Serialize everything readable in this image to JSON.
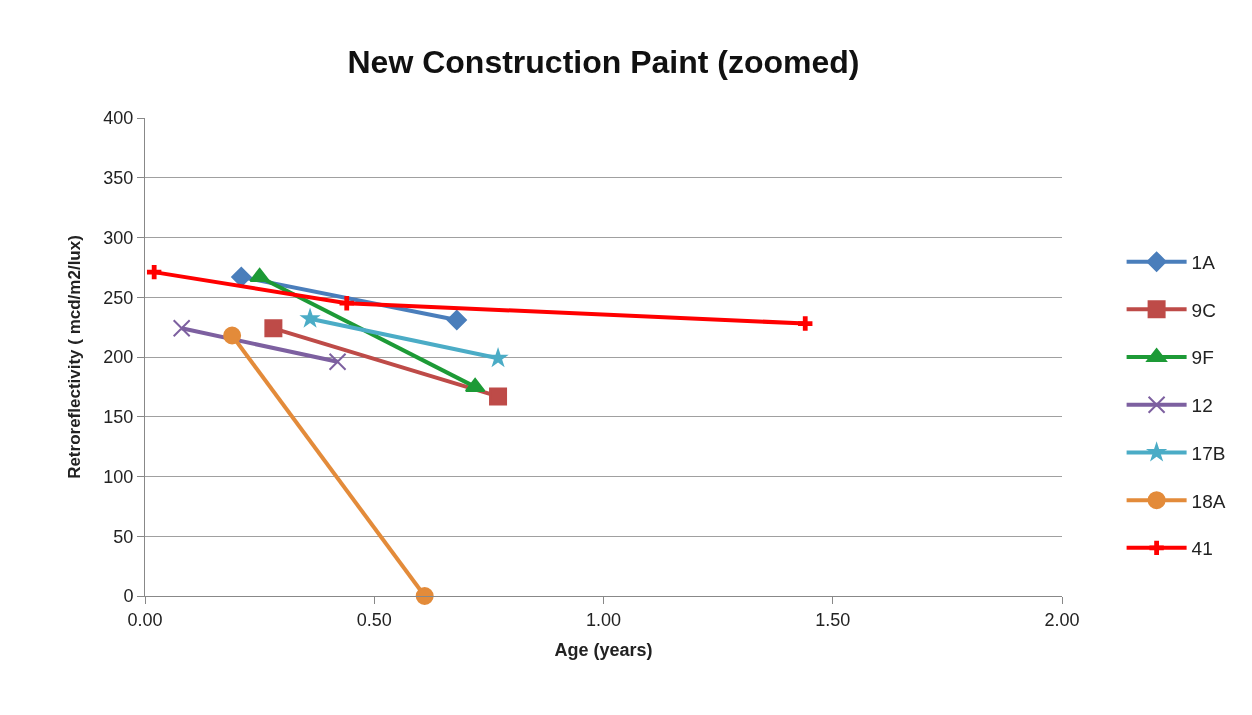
{
  "chart_data": {
    "type": "line",
    "title": "New Construction Paint (zoomed)",
    "xlabel": "Age (years)",
    "ylabel": "Retroreflectivity ( mcd/m2/lux)",
    "xlim": [
      0,
      2
    ],
    "xticks": [
      {
        "value": 0,
        "label": "0.00"
      },
      {
        "value": 0.5,
        "label": "0.50"
      },
      {
        "value": 1,
        "label": "1.00"
      },
      {
        "value": 1.5,
        "label": "1.50"
      },
      {
        "value": 2,
        "label": "2.00"
      }
    ],
    "ylim": [
      0,
      400
    ],
    "yticks": [
      0,
      50,
      100,
      150,
      200,
      250,
      300,
      350,
      400
    ],
    "grid": "y",
    "legend": "right",
    "line_style": "solid",
    "series": [
      {
        "name": "1A",
        "color": "#4a7ebb",
        "marker": "diamond",
        "x": [
          0.21,
          0.68
        ],
        "values": [
          267,
          231
        ]
      },
      {
        "name": "9C",
        "color": "#be4b48",
        "marker": "square",
        "x": [
          0.28,
          0.77
        ],
        "values": [
          224,
          167
        ]
      },
      {
        "name": "9F",
        "color": "#1d9a36",
        "marker": "triangle",
        "x": [
          0.25,
          0.72
        ],
        "values": [
          267,
          175
        ]
      },
      {
        "name": "12",
        "color": "#7d60a0",
        "marker": "x",
        "x": [
          0.08,
          0.42
        ],
        "values": [
          224,
          196
        ]
      },
      {
        "name": "17B",
        "color": "#4bacc6",
        "marker": "star",
        "x": [
          0.36,
          0.77
        ],
        "values": [
          232,
          199
        ]
      },
      {
        "name": "18A",
        "color": "#e38b3a",
        "marker": "circle",
        "x": [
          0.19,
          0.61
        ],
        "values": [
          218,
          0
        ]
      },
      {
        "name": "41",
        "color": "#ff0000",
        "marker": "cross",
        "x": [
          0.02,
          0.44,
          1.44
        ],
        "values": [
          271,
          245,
          228
        ]
      }
    ]
  }
}
